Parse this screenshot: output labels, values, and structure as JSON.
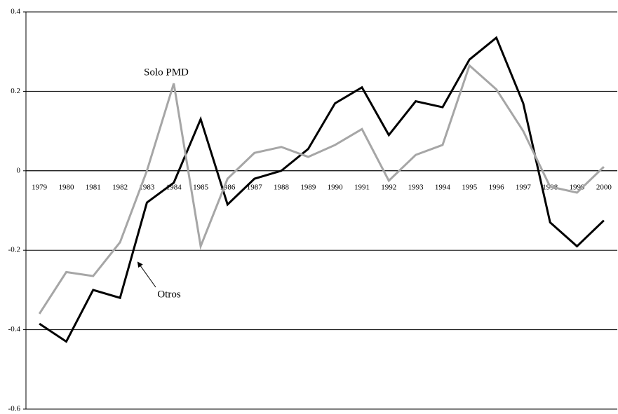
{
  "chart_data": {
    "type": "line",
    "categories": [
      "1979",
      "1980",
      "1981",
      "1982",
      "1983",
      "1984",
      "1985",
      "1986",
      "1987",
      "1988",
      "1989",
      "1990",
      "1991",
      "1992",
      "1993",
      "1994",
      "1995",
      "1996",
      "1997",
      "1998",
      "1999",
      "2000"
    ],
    "series": [
      {
        "name": "Otros",
        "color": "#000000",
        "values": [
          -0.385,
          -0.43,
          -0.3,
          -0.32,
          -0.08,
          -0.03,
          0.13,
          -0.085,
          -0.02,
          0.0,
          0.055,
          0.17,
          0.21,
          0.09,
          0.175,
          0.16,
          0.28,
          0.335,
          0.17,
          -0.13,
          -0.19,
          -0.125
        ]
      },
      {
        "name": "Solo PMD",
        "color": "#a6a6a6",
        "values": [
          -0.36,
          -0.255,
          -0.265,
          -0.18,
          0.0,
          0.22,
          -0.19,
          -0.02,
          0.045,
          0.06,
          0.035,
          0.065,
          0.105,
          -0.025,
          0.04,
          0.065,
          0.265,
          0.205,
          0.1,
          -0.04,
          -0.055,
          0.01
        ]
      }
    ],
    "ylim": [
      -0.6,
      0.4
    ],
    "yticks": [
      -0.6,
      -0.4,
      -0.2,
      0,
      0.2,
      0.4
    ],
    "grid": true
  }
}
